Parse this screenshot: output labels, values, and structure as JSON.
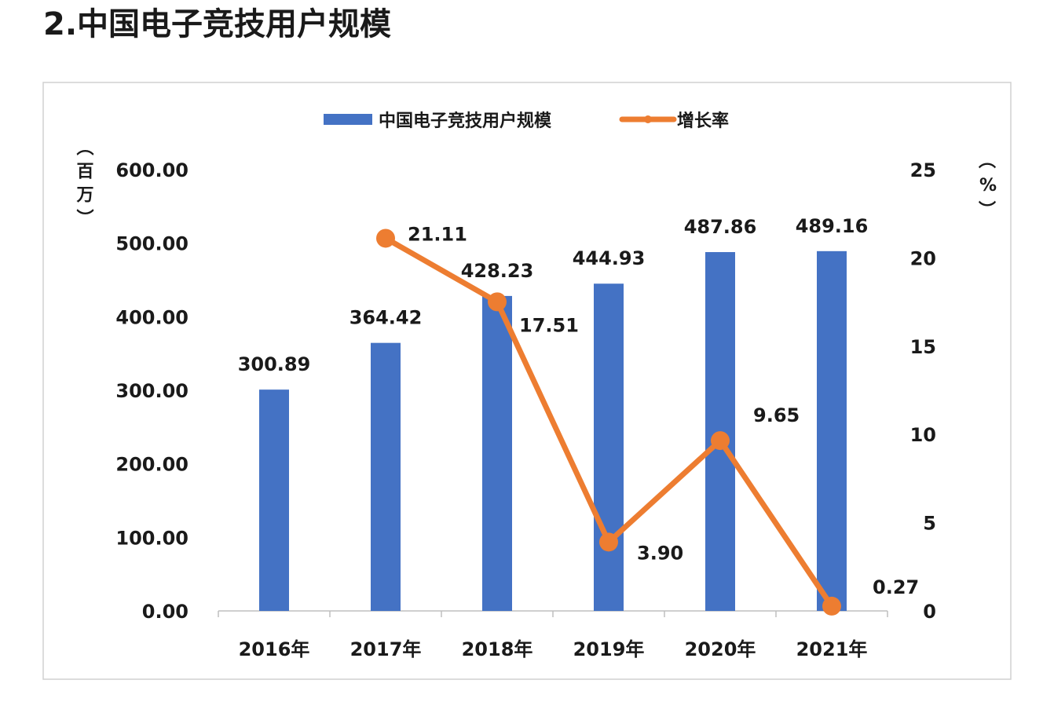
{
  "page_title": "2.中国电子竞技用户规模",
  "chart_data": {
    "type": "bar+line",
    "title": "",
    "categories": [
      "2016年",
      "2017年",
      "2018年",
      "2019年",
      "2020年",
      "2021年"
    ],
    "series": [
      {
        "name": "中国电子竞技用户规模",
        "type": "bar",
        "axis": "left",
        "color": "#4472C4",
        "values": [
          300.89,
          364.42,
          428.23,
          444.93,
          487.86,
          489.16
        ],
        "labels": [
          "300.89",
          "364.42",
          "428.23",
          "444.93",
          "487.86",
          "489.16"
        ]
      },
      {
        "name": "增长率",
        "type": "line",
        "axis": "right",
        "color": "#ED7D31",
        "values": [
          null,
          21.11,
          17.51,
          3.9,
          9.65,
          0.27
        ],
        "labels": [
          "",
          "21.11",
          "17.51",
          "3.90",
          "9.65",
          "0.27"
        ]
      }
    ],
    "y_left": {
      "label": "（百万）",
      "range": [
        0,
        600
      ],
      "ticks": [
        "0.00",
        "100.00",
        "200.00",
        "300.00",
        "400.00",
        "500.00",
        "600.00"
      ]
    },
    "y_right": {
      "label": "（%）",
      "range": [
        0,
        25
      ],
      "ticks": [
        "0",
        "5",
        "10",
        "15",
        "20",
        "25"
      ]
    },
    "grid": false,
    "legend": "top-center"
  }
}
